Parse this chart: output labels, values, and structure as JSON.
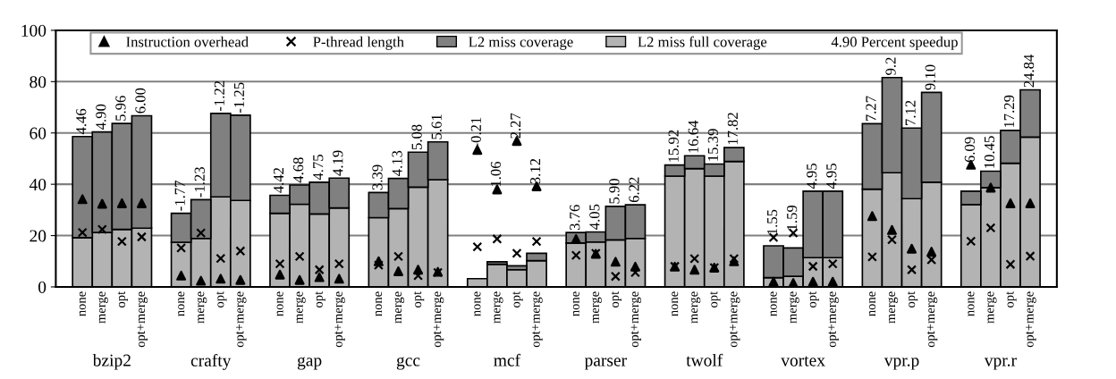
{
  "chart_data": {
    "type": "bar",
    "stacked": true,
    "ylim": [
      0,
      100
    ],
    "yticks": [
      0,
      20,
      40,
      60,
      80,
      100
    ],
    "grid": "y",
    "legend": "top",
    "categories": [
      "none",
      "merge",
      "opt",
      "opt+merge",
      null,
      "none",
      "merge",
      "opt",
      "opt+merge",
      null,
      "none",
      "merge",
      "opt",
      "opt+merge",
      null,
      "none",
      "merge",
      "opt",
      "opt+merge",
      null,
      "none",
      "merge",
      "opt",
      "opt+merge",
      null,
      "none",
      "merge",
      "opt",
      "opt+merge",
      null,
      "none",
      "merge",
      "opt",
      "opt+merge",
      null,
      "none",
      "merge",
      "opt",
      "opt+merge",
      null,
      "none",
      "merge",
      "opt",
      "opt+merge",
      null,
      "none",
      "merge",
      "opt",
      "opt+merge"
    ],
    "annotations": [
      "bzip2",
      "crafty",
      "gap",
      "gcc",
      "mcf",
      "parser",
      "twolf",
      "vortex",
      "vpr.p",
      "vpr.r",
      "4.46",
      "4.90",
      "5.96",
      "6.00",
      "-1.77",
      "-1.23",
      "-1.22",
      "-1.25",
      "4.42",
      "4.68",
      "4.75",
      "4.19",
      "3.39",
      "4.13",
      "5.08",
      "5.61",
      "-0.21",
      "1.06",
      "2.27",
      "3.12",
      "3.76",
      "4.05",
      "5.90",
      "6.22",
      "15.92",
      "16.64",
      "15.39",
      "17.82",
      "1.55",
      "1.59",
      "4.95",
      "4.95",
      "7.27",
      "9.2",
      "7.12",
      "9.10",
      "6.09",
      "10.45",
      "17.29",
      "24.84",
      "4.90 Percent speedup"
    ],
    "series": [
      {
        "name": "Instruction overhead",
        "type": "scatter",
        "marker": "triangle",
        "color": "#000000",
        "values": [
          34.2,
          32.4,
          32.6,
          32.6,
          null,
          4.4,
          2.4,
          3.2,
          2.7,
          null,
          4.8,
          2.7,
          3.8,
          3.2,
          null,
          10,
          6.1,
          6.7,
          5.9,
          null,
          53.4,
          38,
          56.9,
          39.2,
          null,
          18.7,
          12.9,
          9.8,
          7.9,
          null,
          7.9,
          6.7,
          7.5,
          10,
          null,
          2,
          1.5,
          2,
          2,
          null,
          27.6,
          22.2,
          14.9,
          13.7,
          null,
          47.6,
          38.7,
          32.6,
          32.6
        ]
      },
      {
        "name": "P-thread length",
        "type": "scatter",
        "marker": "cross",
        "color": "#000000",
        "values": [
          21.2,
          22.4,
          17.7,
          19.5,
          null,
          15.2,
          21,
          11.1,
          14,
          null,
          9,
          11.9,
          6.7,
          9,
          null,
          8.5,
          11.9,
          4.4,
          5.6,
          null,
          15.6,
          18.7,
          13.1,
          17.7,
          null,
          12.3,
          13.1,
          4.1,
          5.6,
          null,
          8,
          11,
          7.5,
          11,
          null,
          19.3,
          21,
          8,
          9,
          null,
          11.7,
          18.4,
          6.7,
          10.6,
          null,
          17.8,
          23,
          8.8,
          12
        ]
      },
      {
        "name": "L2 miss full coverage",
        "type": "bar",
        "color": "#b3b3b3",
        "values": [
          19.2,
          21.2,
          22.4,
          22.9,
          null,
          17.4,
          18.9,
          35.1,
          33.7,
          null,
          28.7,
          32.2,
          28.4,
          30.8,
          null,
          27.0,
          30.5,
          38.9,
          41.8,
          null,
          3.2,
          8.8,
          6.7,
          10.2,
          null,
          17.1,
          17.5,
          18.3,
          18.9,
          null,
          43.2,
          46.1,
          43.2,
          48.9,
          null,
          3.6,
          4.1,
          11.4,
          11.4,
          null,
          38.1,
          44.5,
          34.4,
          40.8,
          null,
          32.1,
          38.7,
          48.2,
          58.4
        ]
      },
      {
        "name": "L2 miss coverage",
        "type": "bar",
        "color": "#808080",
        "values": [
          39.4,
          39.2,
          41.3,
          43.8,
          null,
          11.3,
          15.1,
          32.5,
          33.2,
          null,
          7.0,
          7.5,
          12.4,
          11.6,
          null,
          9.8,
          11.8,
          13.6,
          14.7,
          null,
          null,
          1.0,
          1.5,
          2.9,
          null,
          4.1,
          3.9,
          13.1,
          13.1,
          null,
          4.3,
          5.0,
          4.7,
          5.4,
          null,
          12.4,
          11.1,
          25.9,
          25.9,
          null,
          25.5,
          37.1,
          27.5,
          35.0,
          null,
          5.2,
          6.4,
          12.8,
          18.4
        ]
      }
    ]
  }
}
